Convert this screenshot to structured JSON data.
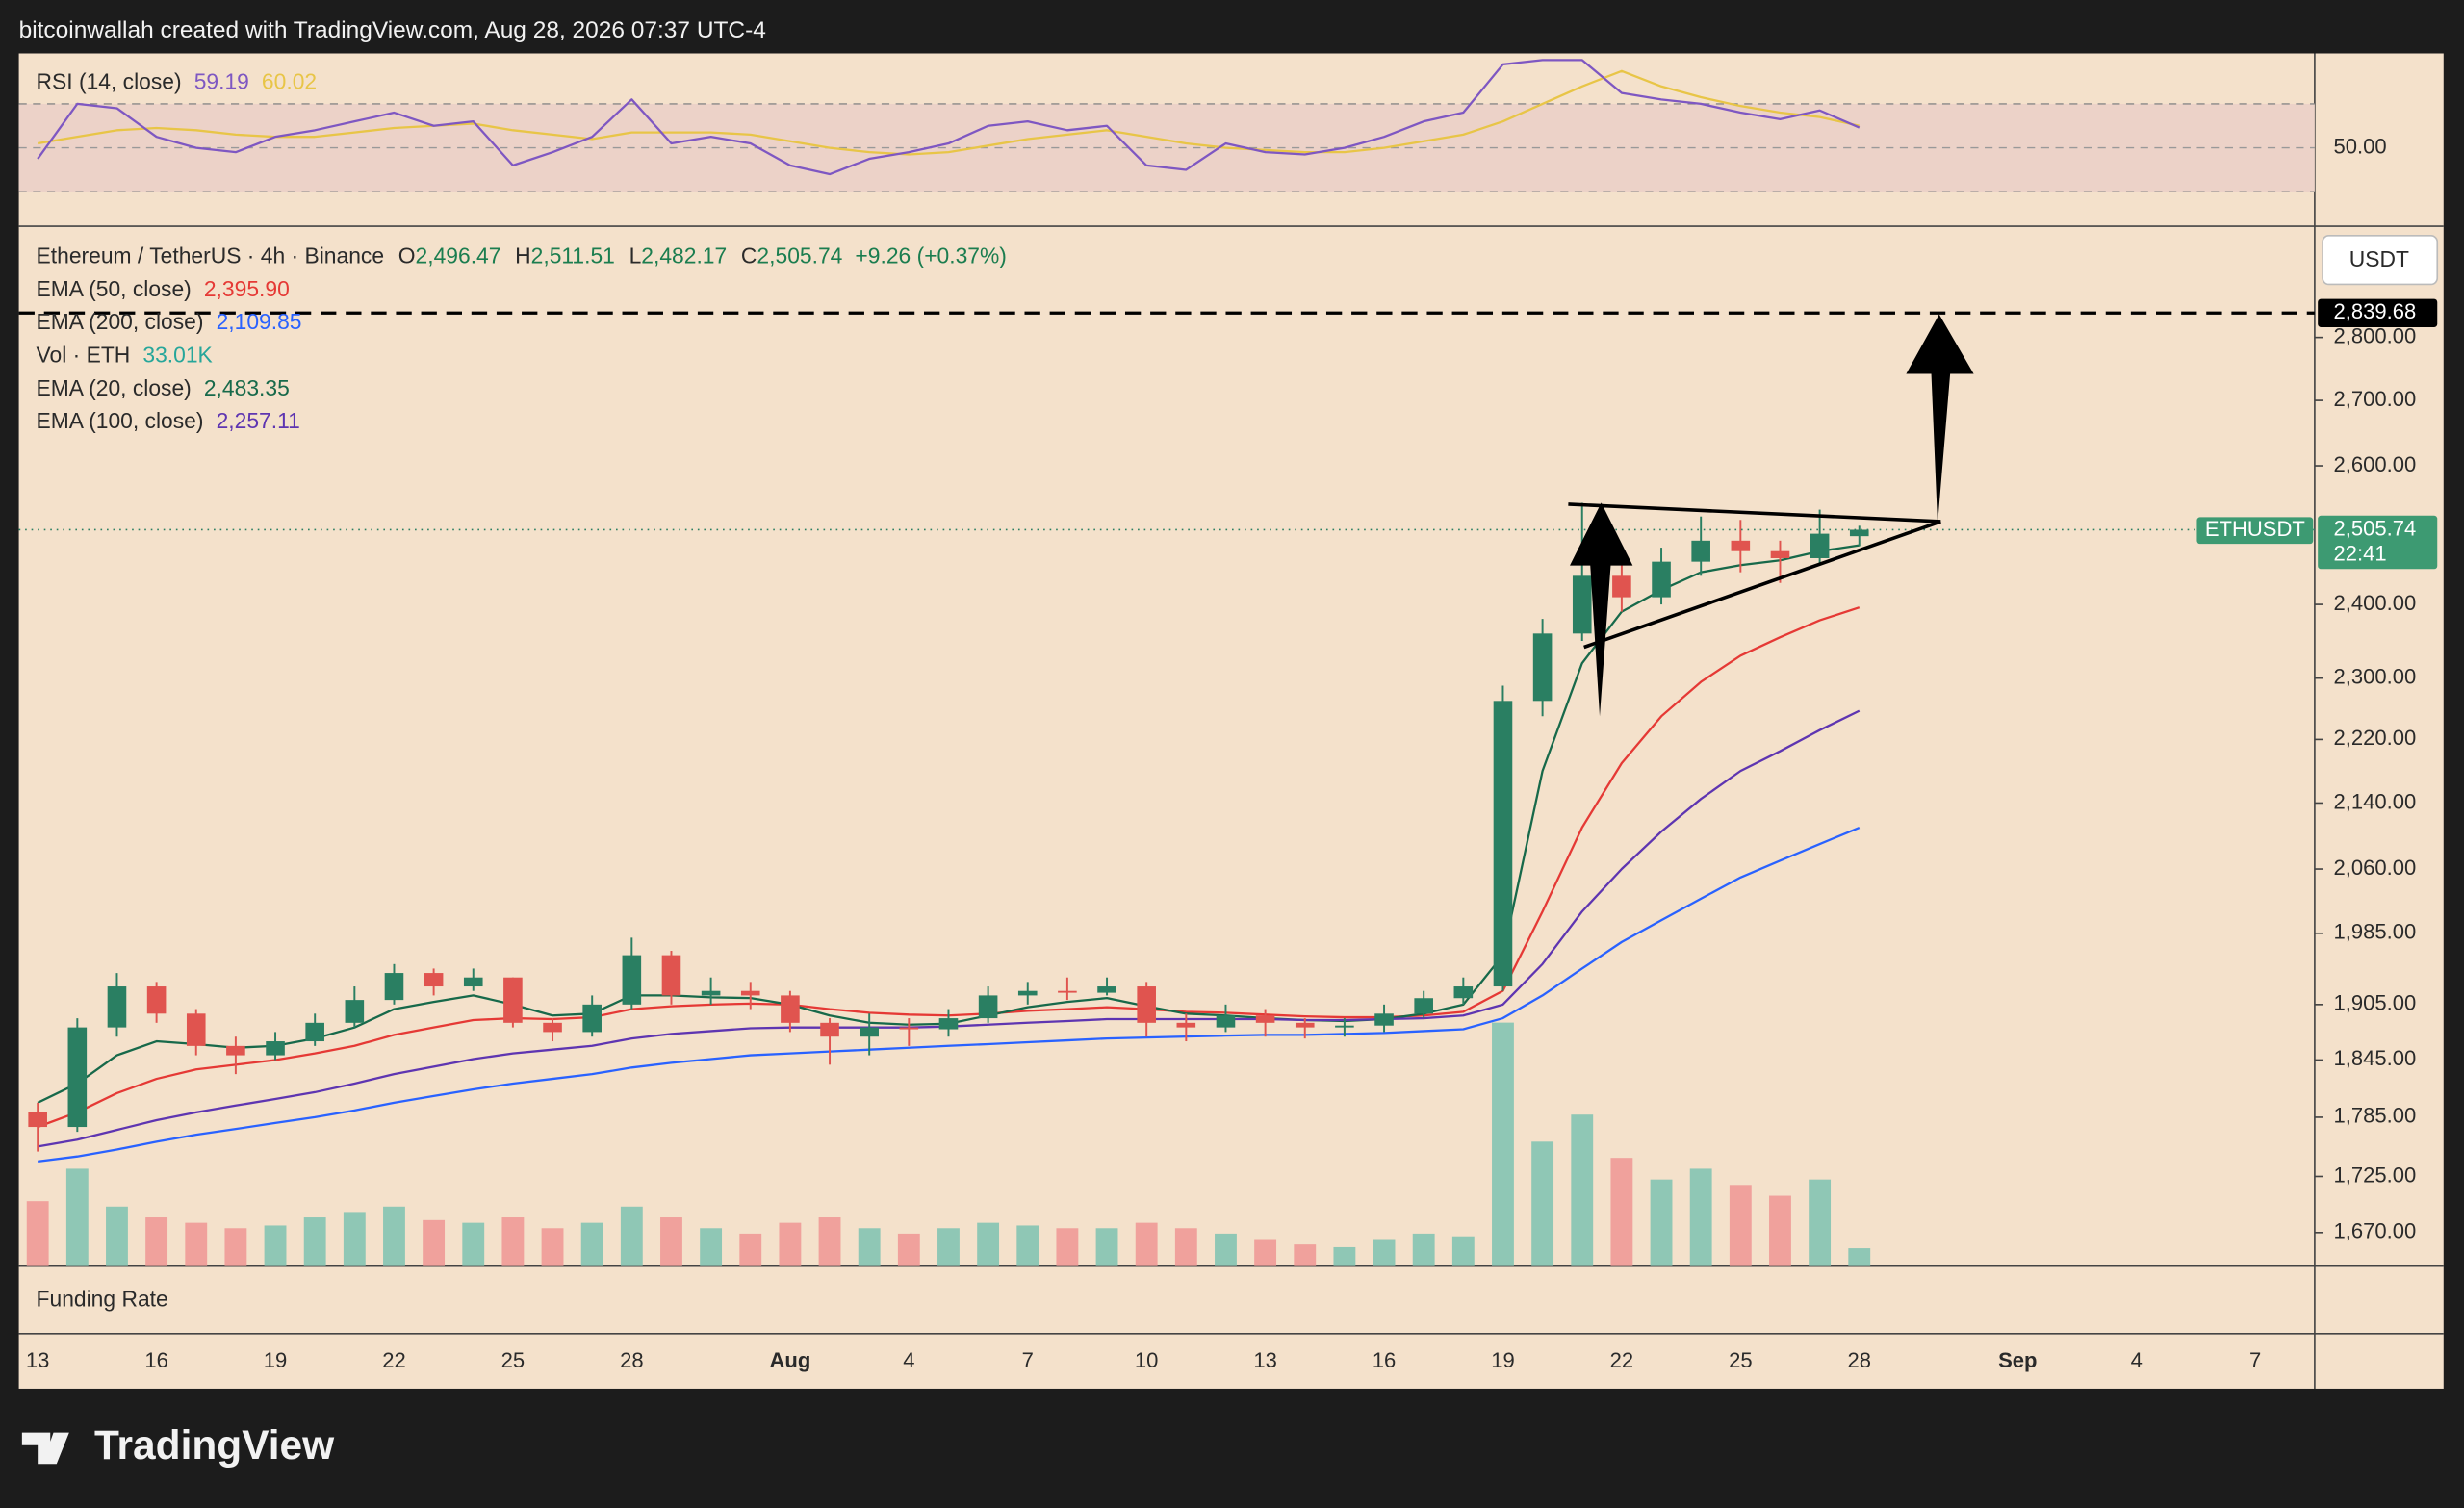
{
  "header": {
    "text": "bitcoinwallah created with TradingView.com, Aug 28, 2026 07:37 UTC-4"
  },
  "chart_data": {
    "type": "candlestick",
    "symbol": "Ethereum / TetherUS · 4h · Binance",
    "ohlc_legend": [
      {
        "key": "O",
        "label": "2,496.47"
      },
      {
        "key": "H",
        "label": "2,511.51"
      },
      {
        "key": "L",
        "label": "2,482.17"
      },
      {
        "key": "C",
        "label": "2,505.74"
      }
    ],
    "change": "+9.26 (+0.37%)",
    "currency": "USDT",
    "ticker": "ETHUSDT",
    "last_price": {
      "value": 2505.74,
      "label": "2,505.74",
      "countdown": "22:41"
    },
    "target": {
      "value": 2839.68,
      "label": "2,839.68"
    },
    "categories": [
      "13",
      null,
      null,
      "16",
      null,
      null,
      "19",
      null,
      null,
      "22",
      null,
      null,
      "25",
      null,
      null,
      "28",
      null,
      null,
      null,
      "Aug",
      null,
      null,
      "4",
      null,
      null,
      "7",
      null,
      null,
      "10",
      null,
      null,
      "13",
      null,
      null,
      "16",
      null,
      null,
      "19",
      null,
      null,
      "22",
      null,
      null,
      "25",
      null,
      null,
      "28",
      null,
      null,
      null,
      "Sep",
      null,
      null,
      "4",
      null,
      null,
      "7"
    ],
    "open": [
      1790,
      1775,
      1880,
      1925,
      1895,
      1860,
      1850,
      1865,
      1885,
      1910,
      1940,
      1925,
      1935,
      1885,
      1875,
      1905,
      1960,
      1915,
      1920,
      1915,
      1885,
      1870,
      1880,
      1878,
      1890,
      1915,
      1920,
      1918,
      1925,
      1885,
      1880,
      1893,
      1885,
      1880,
      1882,
      1895,
      1912,
      1925,
      2270,
      2360,
      2440,
      2410,
      2460,
      2490,
      2475,
      2465,
      2496.47,
      null,
      null,
      null,
      null,
      null,
      null,
      null,
      null,
      null,
      null
    ],
    "high": [
      1800,
      1890,
      1940,
      1930,
      1900,
      1870,
      1875,
      1895,
      1925,
      1950,
      1945,
      1945,
      1935,
      1890,
      1915,
      1980,
      1965,
      1935,
      1930,
      1920,
      1890,
      1895,
      1890,
      1900,
      1925,
      1930,
      1935,
      1935,
      1930,
      1895,
      1905,
      1900,
      1890,
      1890,
      1905,
      1920,
      1935,
      2290,
      2380,
      2545,
      2470,
      2480,
      2525,
      2520,
      2490,
      2535,
      2511.51,
      null,
      null,
      null,
      null,
      null,
      null,
      null,
      null,
      null,
      null
    ],
    "low": [
      1750,
      1770,
      1870,
      1885,
      1850,
      1830,
      1845,
      1860,
      1880,
      1905,
      1915,
      1920,
      1880,
      1865,
      1870,
      1900,
      1905,
      1905,
      1900,
      1875,
      1840,
      1850,
      1860,
      1870,
      1885,
      1905,
      1910,
      1915,
      1870,
      1865,
      1875,
      1870,
      1868,
      1870,
      1875,
      1890,
      1905,
      1920,
      2250,
      2350,
      2390,
      2400,
      2440,
      2445,
      2430,
      2455,
      2482.17,
      null,
      null,
      null,
      null,
      null,
      null,
      null,
      null,
      null,
      null
    ],
    "close": [
      1775,
      1880,
      1925,
      1895,
      1860,
      1850,
      1865,
      1885,
      1910,
      1940,
      1925,
      1935,
      1885,
      1875,
      1905,
      1960,
      1915,
      1920,
      1915,
      1885,
      1870,
      1880,
      1878,
      1890,
      1915,
      1920,
      1918,
      1925,
      1885,
      1880,
      1893,
      1885,
      1880,
      1882,
      1895,
      1912,
      1925,
      2270,
      2360,
      2440,
      2410,
      2460,
      2490,
      2475,
      2465,
      2500,
      2505.74,
      null,
      null,
      null,
      null,
      null,
      null,
      null,
      null,
      null,
      null
    ],
    "up_color": "#2a7f62",
    "down_color": "#e0544f",
    "log_scale": true,
    "ylim": [
      1638,
      2983
    ],
    "yticks": [
      {
        "value": 1670,
        "label": "1,670.00"
      },
      {
        "value": 1725,
        "label": "1,725.00"
      },
      {
        "value": 1785,
        "label": "1,785.00"
      },
      {
        "value": 1845,
        "label": "1,845.00"
      },
      {
        "value": 1905,
        "label": "1,905.00"
      },
      {
        "value": 1985,
        "label": "1,985.00"
      },
      {
        "value": 2060,
        "label": "2,060.00"
      },
      {
        "value": 2140,
        "label": "2,140.00"
      },
      {
        "value": 2220,
        "label": "2,220.00"
      },
      {
        "value": 2300,
        "label": "2,300.00"
      },
      {
        "value": 2400,
        "label": "2,400.00"
      },
      {
        "value": 2600,
        "label": "2,600.00"
      },
      {
        "value": 2700,
        "label": "2,700.00"
      },
      {
        "value": 2800,
        "label": "2,800.00"
      }
    ],
    "series": [
      {
        "name": "EMA (50, close)",
        "color": "#e53935",
        "value_label": "2,395.90",
        "values": [
          1775,
          1790,
          1810,
          1825,
          1835,
          1840,
          1845,
          1852,
          1860,
          1872,
          1880,
          1888,
          1890,
          1889,
          1891,
          1900,
          1903,
          1905,
          1906,
          1905,
          1900,
          1896,
          1894,
          1893,
          1895,
          1898,
          1900,
          1902,
          1900,
          1897,
          1896,
          1894,
          1892,
          1891,
          1891,
          1893,
          1897,
          1920,
          2010,
          2110,
          2190,
          2250,
          2295,
          2330,
          2355,
          2378,
          2395.9,
          null,
          null,
          null,
          null,
          null,
          null,
          null,
          null,
          null,
          null
        ]
      },
      {
        "name": "EMA (200, close)",
        "color": "#2962ff",
        "value_label": "2,109.85",
        "values": [
          1740,
          1745,
          1752,
          1760,
          1767,
          1773,
          1779,
          1785,
          1792,
          1800,
          1807,
          1814,
          1820,
          1825,
          1830,
          1837,
          1842,
          1846,
          1850,
          1852,
          1854,
          1856,
          1858,
          1860,
          1862,
          1864,
          1866,
          1868,
          1869,
          1870,
          1871,
          1872,
          1872,
          1873,
          1874,
          1876,
          1878,
          1890,
          1915,
          1945,
          1975,
          2000,
          2025,
          2050,
          2070,
          2090,
          2109.85,
          null,
          null,
          null,
          null,
          null,
          null,
          null,
          null,
          null,
          null
        ]
      },
      {
        "name": "EMA (20, close)",
        "color": "#17694a",
        "value_label": "2,483.35",
        "values": [
          1800,
          1820,
          1850,
          1865,
          1862,
          1858,
          1860,
          1868,
          1880,
          1900,
          1908,
          1915,
          1905,
          1893,
          1895,
          1915,
          1915,
          1913,
          1912,
          1905,
          1893,
          1885,
          1883,
          1884,
          1893,
          1902,
          1908,
          1912,
          1903,
          1895,
          1893,
          1890,
          1888,
          1887,
          1889,
          1895,
          1905,
          1960,
          2180,
          2320,
          2390,
          2420,
          2445,
          2455,
          2462,
          2475,
          2483.35,
          null,
          null,
          null,
          null,
          null,
          null,
          null,
          null,
          null,
          null
        ]
      },
      {
        "name": "EMA (100, close)",
        "color": "#5e35b1",
        "value_label": "2,257.11",
        "values": [
          1755,
          1762,
          1772,
          1782,
          1790,
          1797,
          1804,
          1811,
          1820,
          1830,
          1838,
          1846,
          1852,
          1856,
          1860,
          1868,
          1873,
          1876,
          1879,
          1880,
          1880,
          1880,
          1880,
          1881,
          1883,
          1885,
          1887,
          1889,
          1889,
          1889,
          1889,
          1889,
          1888,
          1888,
          1889,
          1890,
          1893,
          1905,
          1950,
          2010,
          2060,
          2105,
          2145,
          2180,
          2205,
          2232,
          2257.11,
          null,
          null,
          null,
          null,
          null,
          null,
          null,
          null,
          null,
          null
        ]
      }
    ],
    "volume": {
      "name": "Vol · ETH",
      "color": "#26a69a",
      "value_label": "33.01K",
      "up_color": "#8fc7b5",
      "down_color": "#f0a19c",
      "values": [
        120,
        180,
        110,
        90,
        80,
        70,
        75,
        90,
        100,
        110,
        85,
        80,
        90,
        70,
        80,
        110,
        90,
        70,
        60,
        80,
        90,
        70,
        60,
        70,
        80,
        75,
        70,
        70,
        80,
        70,
        60,
        50,
        40,
        35,
        50,
        60,
        55,
        450,
        230,
        280,
        200,
        160,
        180,
        150,
        130,
        160,
        33.01,
        null,
        null,
        null,
        null,
        null,
        null,
        null,
        null,
        null,
        null
      ]
    },
    "rsi": {
      "name": "RSI (14, close)",
      "color": "#7e57c2",
      "value_label": "59.19",
      "values": [
        45,
        70,
        68,
        55,
        50,
        48,
        55,
        58,
        62,
        66,
        60,
        62,
        42,
        48,
        55,
        72,
        52,
        55,
        52,
        42,
        38,
        45,
        48,
        52,
        60,
        62,
        58,
        60,
        42,
        40,
        52,
        48,
        47,
        50,
        55,
        62,
        66,
        88,
        90,
        90,
        75,
        72,
        70,
        66,
        63,
        67,
        59.19,
        null,
        null,
        null,
        null,
        null,
        null,
        null,
        null,
        null,
        null
      ],
      "ma": {
        "color": "#e8c547",
        "value_label": "60.02",
        "values": [
          52,
          55,
          58,
          59,
          58,
          56,
          55,
          55,
          57,
          59,
          60,
          61,
          58,
          56,
          54,
          57,
          57,
          57,
          56,
          53,
          50,
          48,
          47,
          48,
          51,
          54,
          56,
          58,
          55,
          52,
          50,
          49,
          48,
          48,
          50,
          53,
          56,
          62,
          70,
          78,
          85,
          78,
          73,
          69,
          66,
          64,
          60.02,
          null,
          null,
          null,
          null,
          null,
          null,
          null,
          null,
          null,
          null
        ]
      },
      "ylim": [
        15,
        93
      ],
      "yticks": [
        {
          "value": 50,
          "label": "50.00"
        }
      ],
      "bands": [
        70,
        30
      ]
    },
    "funding": {
      "name": "Funding Rate"
    }
  },
  "footer": {
    "brand": "TradingView"
  }
}
